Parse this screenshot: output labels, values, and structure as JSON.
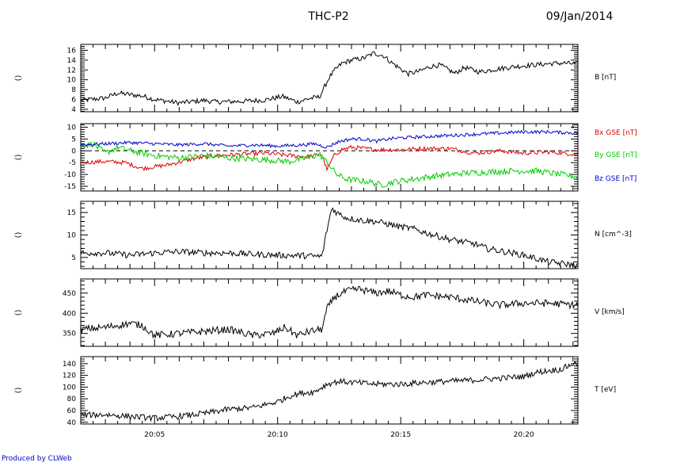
{
  "header": {
    "title": "THC-P2",
    "date": "09/Jan/2014"
  },
  "footer": {
    "credit": "Produced by CLWeb"
  },
  "x_axis": {
    "unit": "minutes after 20:00 UT, 09/Jan/2014",
    "range": [
      2.0,
      22.2
    ],
    "ticks": [
      5,
      10,
      15,
      20
    ],
    "tick_labels": [
      "20:05",
      "20:10",
      "20:15",
      "20:20"
    ],
    "minor_every": 0.5
  },
  "colors": {
    "axis": "#000000",
    "bx": "#e00000",
    "by": "#00cc00",
    "bz": "#0000cc",
    "credit": "#0000cc"
  },
  "chart_data": [
    {
      "type": "line",
      "ylabel": "()",
      "ylim": [
        3.5,
        17.2
      ],
      "yticks": [
        4,
        6,
        8,
        10,
        12,
        14,
        16
      ],
      "ytick_labels": [
        "4",
        "6",
        "8",
        "10",
        "12",
        "14",
        "16"
      ],
      "legend": [
        "B [nT]"
      ],
      "series": [
        {
          "name": "B [nT]",
          "color": "#000000",
          "jitter": 0.5,
          "x": [
            2.0,
            3.0,
            3.5,
            4.5,
            5.0,
            6.0,
            7.0,
            7.5,
            8.5,
            9.5,
            10.2,
            10.8,
            11.3,
            11.7,
            11.9,
            12.1,
            12.3,
            12.6,
            13.0,
            13.5,
            13.9,
            14.3,
            14.6,
            15.0,
            15.3,
            15.8,
            16.2,
            16.6,
            17.2,
            17.6,
            18.2,
            18.8,
            19.5,
            20.1,
            20.6,
            21.1,
            21.6,
            22.2
          ],
          "y": [
            5.8,
            6.3,
            7.3,
            6.7,
            6.0,
            5.3,
            5.8,
            5.5,
            5.6,
            5.9,
            6.6,
            5.5,
            6.2,
            6.5,
            8.5,
            10.5,
            11.8,
            13.3,
            14.0,
            14.4,
            15.4,
            14.9,
            13.6,
            12.2,
            11.2,
            11.8,
            12.7,
            13.0,
            11.3,
            12.5,
            11.6,
            12.1,
            12.6,
            12.9,
            13.1,
            13.3,
            13.4,
            13.2
          ]
        }
      ]
    },
    {
      "type": "line",
      "ylabel": "()",
      "ylim": [
        -17,
        11.5
      ],
      "yticks": [
        -15,
        -10,
        -5,
        0,
        5,
        10
      ],
      "ytick_labels": [
        "-15",
        "-10",
        "-5",
        "0",
        "5",
        "10"
      ],
      "zero_line": true,
      "legend": [
        "Bx GSE [nT]",
        "By GSE [nT]",
        "Bz GSE [nT]"
      ],
      "series": [
        {
          "name": "Bx GSE [nT]",
          "color": "#e00000",
          "jitter": 0.9,
          "x": [
            2.0,
            3.0,
            3.8,
            4.5,
            5.5,
            6.5,
            7.5,
            8.5,
            9.5,
            10.5,
            11.2,
            11.8,
            12.0,
            12.3,
            12.6,
            13.0,
            13.5,
            14.0,
            14.5,
            15.0,
            16.0,
            17.0,
            18.0,
            19.0,
            20.0,
            21.0,
            22.2
          ],
          "y": [
            -5.0,
            -4.5,
            -5.0,
            -7.5,
            -6.0,
            -3.5,
            -2.0,
            -1.5,
            -1.0,
            -2.0,
            -2.5,
            -1.5,
            -8.0,
            -2.0,
            0.5,
            1.5,
            1.0,
            0.5,
            0.5,
            0.5,
            1.0,
            1.0,
            -1.0,
            0.0,
            -1.0,
            -0.5,
            -1.5
          ]
        },
        {
          "name": "By GSE [nT]",
          "color": "#00cc00",
          "jitter": 1.3,
          "x": [
            2.0,
            2.5,
            3.0,
            3.5,
            4.0,
            5.0,
            6.0,
            7.0,
            8.0,
            9.0,
            9.8,
            10.5,
            11.2,
            11.7,
            12.1,
            12.4,
            12.8,
            13.2,
            13.7,
            14.2,
            14.8,
            15.5,
            16.5,
            17.5,
            18.5,
            19.5,
            20.5,
            21.5,
            22.2
          ],
          "y": [
            2.0,
            3.0,
            -1.0,
            1.5,
            0.0,
            -2.0,
            -3.0,
            -2.0,
            -3.0,
            -3.5,
            -4.0,
            -4.5,
            -3.0,
            -1.5,
            -6.0,
            -10.0,
            -12.0,
            -12.5,
            -13.0,
            -14.5,
            -13.0,
            -12.0,
            -10.5,
            -9.5,
            -9.0,
            -8.5,
            -8.5,
            -10.0,
            -11.0
          ]
        },
        {
          "name": "Bz GSE [nT]",
          "color": "#0000cc",
          "jitter": 0.7,
          "x": [
            2.0,
            3.0,
            4.0,
            5.0,
            6.0,
            7.0,
            8.0,
            9.0,
            10.0,
            11.0,
            11.5,
            12.0,
            12.5,
            13.0,
            13.5,
            14.0,
            14.5,
            15.0,
            16.0,
            17.0,
            18.0,
            19.0,
            20.0,
            21.0,
            22.2
          ],
          "y": [
            2.5,
            3.0,
            3.5,
            3.0,
            2.5,
            3.0,
            2.0,
            2.5,
            2.0,
            2.5,
            3.0,
            1.5,
            4.0,
            5.0,
            5.0,
            4.0,
            5.0,
            5.5,
            6.0,
            6.5,
            7.0,
            7.5,
            8.0,
            8.0,
            7.5
          ]
        }
      ]
    },
    {
      "type": "line",
      "ylabel": "()",
      "ylim": [
        2.5,
        17.5
      ],
      "yticks": [
        5,
        10,
        15
      ],
      "ytick_labels": [
        "5",
        "10",
        "15"
      ],
      "legend": [
        "N [cm^-3]"
      ],
      "series": [
        {
          "name": "N [cm^-3]",
          "color": "#000000",
          "jitter": 0.7,
          "x": [
            2.0,
            3.0,
            4.0,
            5.0,
            6.0,
            7.0,
            8.0,
            9.0,
            10.0,
            11.0,
            11.8,
            12.0,
            12.2,
            12.4,
            12.8,
            13.5,
            14.0,
            14.5,
            15.0,
            15.5,
            16.0,
            17.0,
            18.0,
            18.5,
            19.0,
            20.0,
            21.0,
            22.2
          ],
          "y": [
            6.0,
            6.0,
            5.5,
            6.0,
            6.3,
            6.0,
            6.0,
            5.7,
            5.5,
            5.4,
            5.2,
            11.0,
            16.0,
            15.0,
            13.8,
            13.2,
            13.0,
            12.4,
            11.8,
            11.4,
            10.5,
            9.0,
            8.0,
            7.0,
            6.5,
            5.5,
            4.0,
            3.2
          ]
        }
      ]
    },
    {
      "type": "line",
      "ylabel": "()",
      "ylim": [
        318,
        485
      ],
      "yticks": [
        350,
        400,
        450
      ],
      "ytick_labels": [
        "350",
        "400",
        "450"
      ],
      "legend": [
        "V [km/s]"
      ],
      "series": [
        {
          "name": "V [km/s]",
          "color": "#000000",
          "jitter": 9,
          "x": [
            2.0,
            3.0,
            4.0,
            4.5,
            5.0,
            6.0,
            7.0,
            8.0,
            9.0,
            9.8,
            10.3,
            10.8,
            11.3,
            11.8,
            12.0,
            12.3,
            12.8,
            13.3,
            14.0,
            14.5,
            15.0,
            15.5,
            16.0,
            17.0,
            18.0,
            19.0,
            20.0,
            21.0,
            22.2
          ],
          "y": [
            360,
            365,
            375,
            370,
            345,
            350,
            355,
            360,
            345,
            350,
            365,
            345,
            355,
            360,
            410,
            440,
            455,
            460,
            450,
            455,
            445,
            440,
            445,
            440,
            430,
            420,
            425,
            425,
            420
          ]
        }
      ]
    },
    {
      "type": "line",
      "ylabel": "()",
      "ylim": [
        37,
        152
      ],
      "yticks": [
        40,
        60,
        80,
        100,
        120,
        140
      ],
      "ytick_labels": [
        "40",
        "60",
        "80",
        "100",
        "120",
        "140"
      ],
      "legend": [
        "T [eV]"
      ],
      "series": [
        {
          "name": "T [eV]",
          "color": "#000000",
          "jitter": 5,
          "x": [
            2.0,
            3.0,
            4.0,
            5.0,
            6.0,
            7.0,
            8.0,
            9.0,
            10.0,
            10.5,
            11.0,
            11.5,
            12.0,
            12.5,
            13.0,
            14.0,
            15.0,
            16.0,
            17.0,
            18.0,
            19.0,
            20.0,
            20.5,
            21.0,
            21.5,
            22.0,
            22.2
          ],
          "y": [
            52,
            53,
            50,
            47,
            50,
            55,
            62,
            65,
            75,
            85,
            90,
            92,
            105,
            110,
            108,
            105,
            105,
            108,
            110,
            112,
            115,
            118,
            125,
            128,
            130,
            140,
            138
          ]
        }
      ]
    }
  ]
}
